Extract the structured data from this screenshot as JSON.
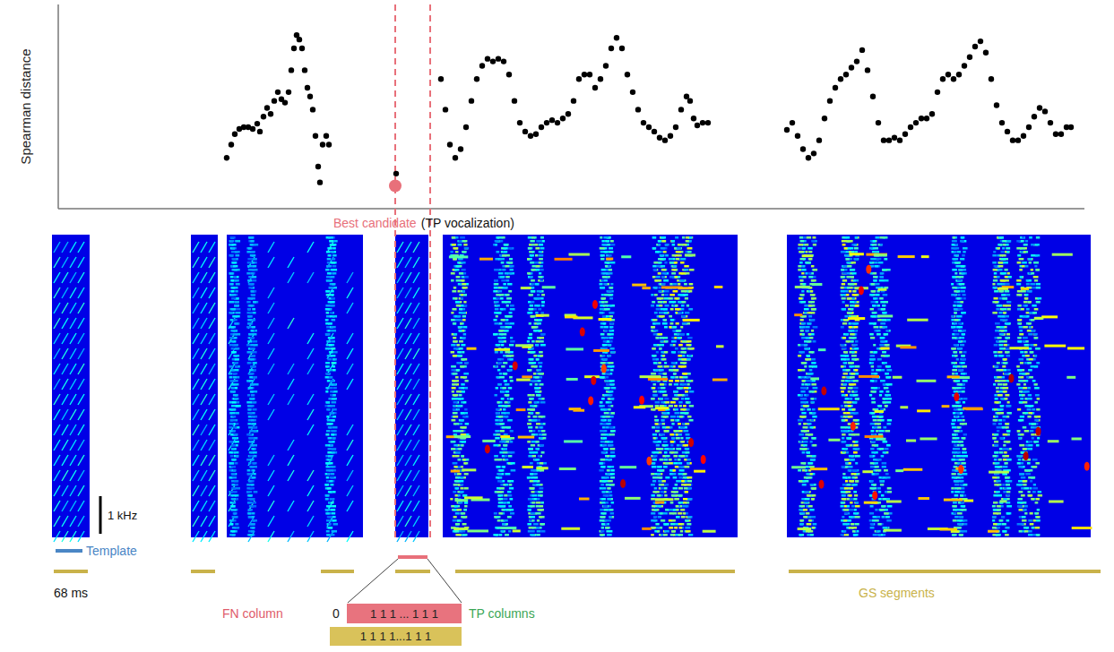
{
  "chart_data": {
    "type": "scatter",
    "y_label": "Spearman distance",
    "xlim": [
      0,
      1145
    ],
    "ylim": [
      0,
      233
    ],
    "xticks": [],
    "yticks": [],
    "tick_labels": false,
    "grid": false,
    "candidate_window": [
      376,
      415
    ],
    "series": [
      {
        "color": "#000000",
        "marker": "dot",
        "x": [
          188,
          193,
          197,
          202,
          207,
          212,
          217,
          222,
          225,
          229,
          233,
          237,
          241,
          245,
          249,
          253,
          257,
          260,
          263,
          266,
          269,
          272,
          275,
          278,
          281,
          284,
          287,
          290,
          292,
          295,
          299,
          302,
          377,
          427,
          432,
          437,
          443,
          449,
          455,
          461,
          467,
          473,
          479,
          485,
          491,
          497,
          503,
          509,
          515,
          521,
          527,
          533,
          539,
          545,
          551,
          557,
          563,
          569,
          575,
          581,
          587,
          593,
          599,
          605,
          611,
          617,
          623,
          629,
          635,
          641,
          647,
          653,
          659,
          665,
          671,
          677,
          683,
          689,
          695,
          701,
          705,
          709,
          713,
          719,
          725,
          813,
          819,
          825,
          831,
          837,
          843,
          849,
          855,
          861,
          867,
          873,
          879,
          885,
          891,
          897,
          903,
          909,
          915,
          921,
          927,
          933,
          939,
          945,
          951,
          957,
          963,
          969,
          975,
          981,
          987,
          993,
          999,
          1005,
          1011,
          1017,
          1023,
          1029,
          1035,
          1041,
          1047,
          1053,
          1059,
          1065,
          1071,
          1077,
          1083,
          1089,
          1095,
          1101,
          1107,
          1113,
          1119,
          1125,
          1130
        ],
        "values": [
          58,
          73,
          85,
          91,
          93,
          93,
          91,
          97,
          88,
          105,
          115,
          108,
          123,
          133,
          125,
          121,
          133,
          158,
          183,
          198,
          193,
          183,
          158,
          138,
          128,
          113,
          83,
          48,
          30,
          73,
          83,
          73,
          40,
          148,
          113,
          73,
          58,
          68,
          93,
          123,
          148,
          163,
          171,
          168,
          171,
          168,
          153,
          123,
          98,
          88,
          83,
          85,
          93,
          98,
          101,
          98,
          103,
          108,
          123,
          148,
          153,
          153,
          138,
          148,
          163,
          183,
          195,
          183,
          153,
          133,
          113,
          98,
          93,
          88,
          81,
          78,
          83,
          93,
          113,
          128,
          123,
          103,
          95,
          98,
          98,
          90,
          98,
          83,
          68,
          58,
          63,
          78,
          103,
          123,
          138,
          148,
          153,
          161,
          168,
          181,
          158,
          128,
          98,
          78,
          78,
          81,
          78,
          85,
          93,
          98,
          103,
          103,
          108,
          133,
          148,
          153,
          148,
          153,
          163,
          173,
          185,
          191,
          178,
          148,
          118,
          98,
          88,
          78,
          78,
          83,
          93,
          105,
          115,
          111,
          98,
          85,
          85,
          93,
          93
        ]
      },
      {
        "name": "Best candidate",
        "color": "#e8707a",
        "marker": "circle",
        "x": [
          376
        ],
        "values": [
          26
        ]
      }
    ],
    "annotations": {
      "candidate_note": "(TP vocalization)",
      "scale_bar": "1 kHz",
      "template": "Template",
      "duration": "68 ms",
      "segments": "GS segments",
      "fn_column": "FN column",
      "fn_value": "0",
      "tp_values": "1 1 1 ... 1 1 1",
      "tp_columns": "TP columns",
      "gs_values": "1 1 1 1...1 1 1"
    }
  }
}
